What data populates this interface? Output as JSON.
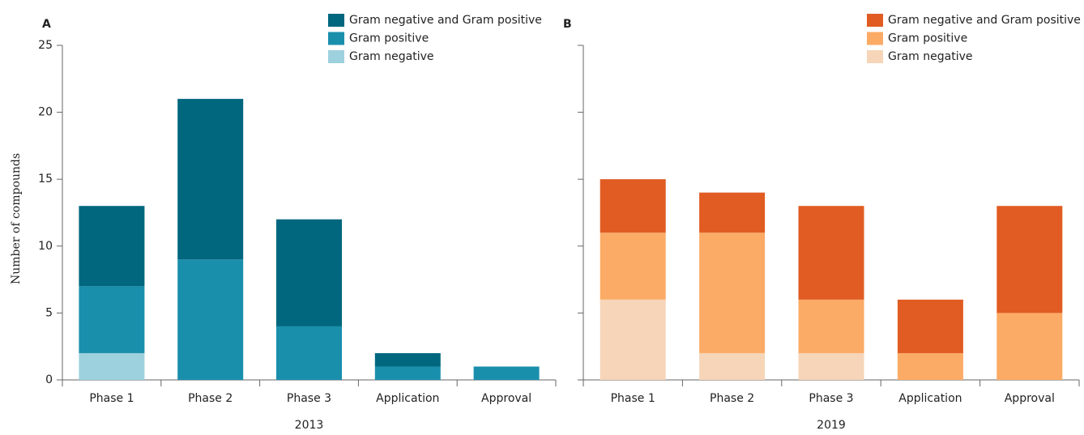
{
  "chart_data": [
    {
      "type": "bar",
      "stacked": true,
      "panel": "A",
      "xlabel": "2013",
      "ylabel": "Number of compounds",
      "categories": [
        "Phase 1",
        "Phase 2",
        "Phase 3",
        "Application",
        "Approval"
      ],
      "series": [
        {
          "name": "Gram negative",
          "color": "#9dd1dd",
          "values": [
            2,
            0,
            0,
            0,
            0
          ]
        },
        {
          "name": "Gram positive",
          "color": "#1a8fac",
          "values": [
            5,
            9,
            4,
            1,
            1
          ]
        },
        {
          "name": "Gram negative and Gram positive",
          "color": "#00677f",
          "values": [
            6,
            12,
            8,
            1,
            0
          ]
        }
      ],
      "ylim": [
        0,
        25
      ],
      "yticks": [
        0,
        5,
        10,
        15,
        20,
        25
      ],
      "legend": "top-right"
    },
    {
      "type": "bar",
      "stacked": true,
      "panel": "B",
      "xlabel": "2019",
      "categories": [
        "Phase 1",
        "Phase 2",
        "Phase 3",
        "Application",
        "Approval"
      ],
      "series": [
        {
          "name": "Gram negative",
          "color": "#f6d5b8",
          "values": [
            6,
            2,
            2,
            0,
            0
          ]
        },
        {
          "name": "Gram positive",
          "color": "#fbab66",
          "values": [
            5,
            9,
            4,
            2,
            5
          ]
        },
        {
          "name": "Gram negative and Gram positive",
          "color": "#e05c22",
          "values": [
            4,
            3,
            7,
            4,
            8
          ]
        }
      ],
      "ylim": [
        0,
        25
      ],
      "yticks": [
        0,
        5,
        10,
        15,
        20,
        25
      ],
      "legend": "top-right"
    }
  ]
}
